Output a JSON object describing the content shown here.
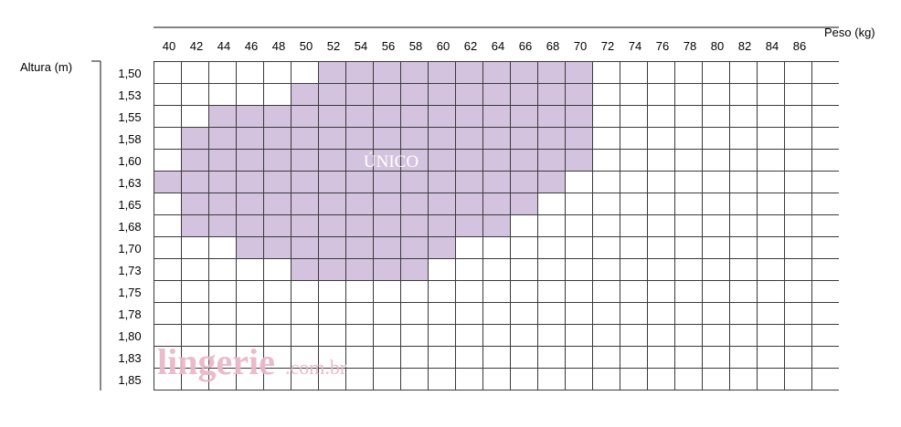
{
  "chart_data": {
    "type": "heatmap",
    "xlabel": "Peso (kg)",
    "ylabel": "Altura (m)",
    "x_ticks": [
      "40",
      "42",
      "44",
      "46",
      "48",
      "50",
      "52",
      "54",
      "56",
      "58",
      "60",
      "62",
      "64",
      "66",
      "68",
      "70",
      "72",
      "74",
      "76",
      "78",
      "80",
      "82",
      "84",
      "86"
    ],
    "y_ticks": [
      "1,50",
      "1,53",
      "1,55",
      "1,58",
      "1,60",
      "1,63",
      "1,65",
      "1,68",
      "1,70",
      "1,73",
      "1,75",
      "1,78",
      "1,80",
      "1,83",
      "1,85"
    ],
    "region": {
      "label": "ÚNICO",
      "color": "#d4c3df",
      "rows": [
        {
          "y": "1,50",
          "from": "52",
          "to": "70"
        },
        {
          "y": "1,53",
          "from": "50",
          "to": "70"
        },
        {
          "y": "1,55",
          "from": "44",
          "to": "70"
        },
        {
          "y": "1,58",
          "from": "42",
          "to": "70"
        },
        {
          "y": "1,60",
          "from": "42",
          "to": "70"
        },
        {
          "y": "1,63",
          "from": "40",
          "to": "68"
        },
        {
          "y": "1,65",
          "from": "42",
          "to": "66"
        },
        {
          "y": "1,68",
          "from": "42",
          "to": "64"
        },
        {
          "y": "1,70",
          "from": "46",
          "to": "60"
        },
        {
          "y": "1,73",
          "from": "50",
          "to": "58"
        }
      ]
    },
    "grid": true
  },
  "watermark": {
    "main": "lingerie",
    "suffix": ".com.br"
  }
}
